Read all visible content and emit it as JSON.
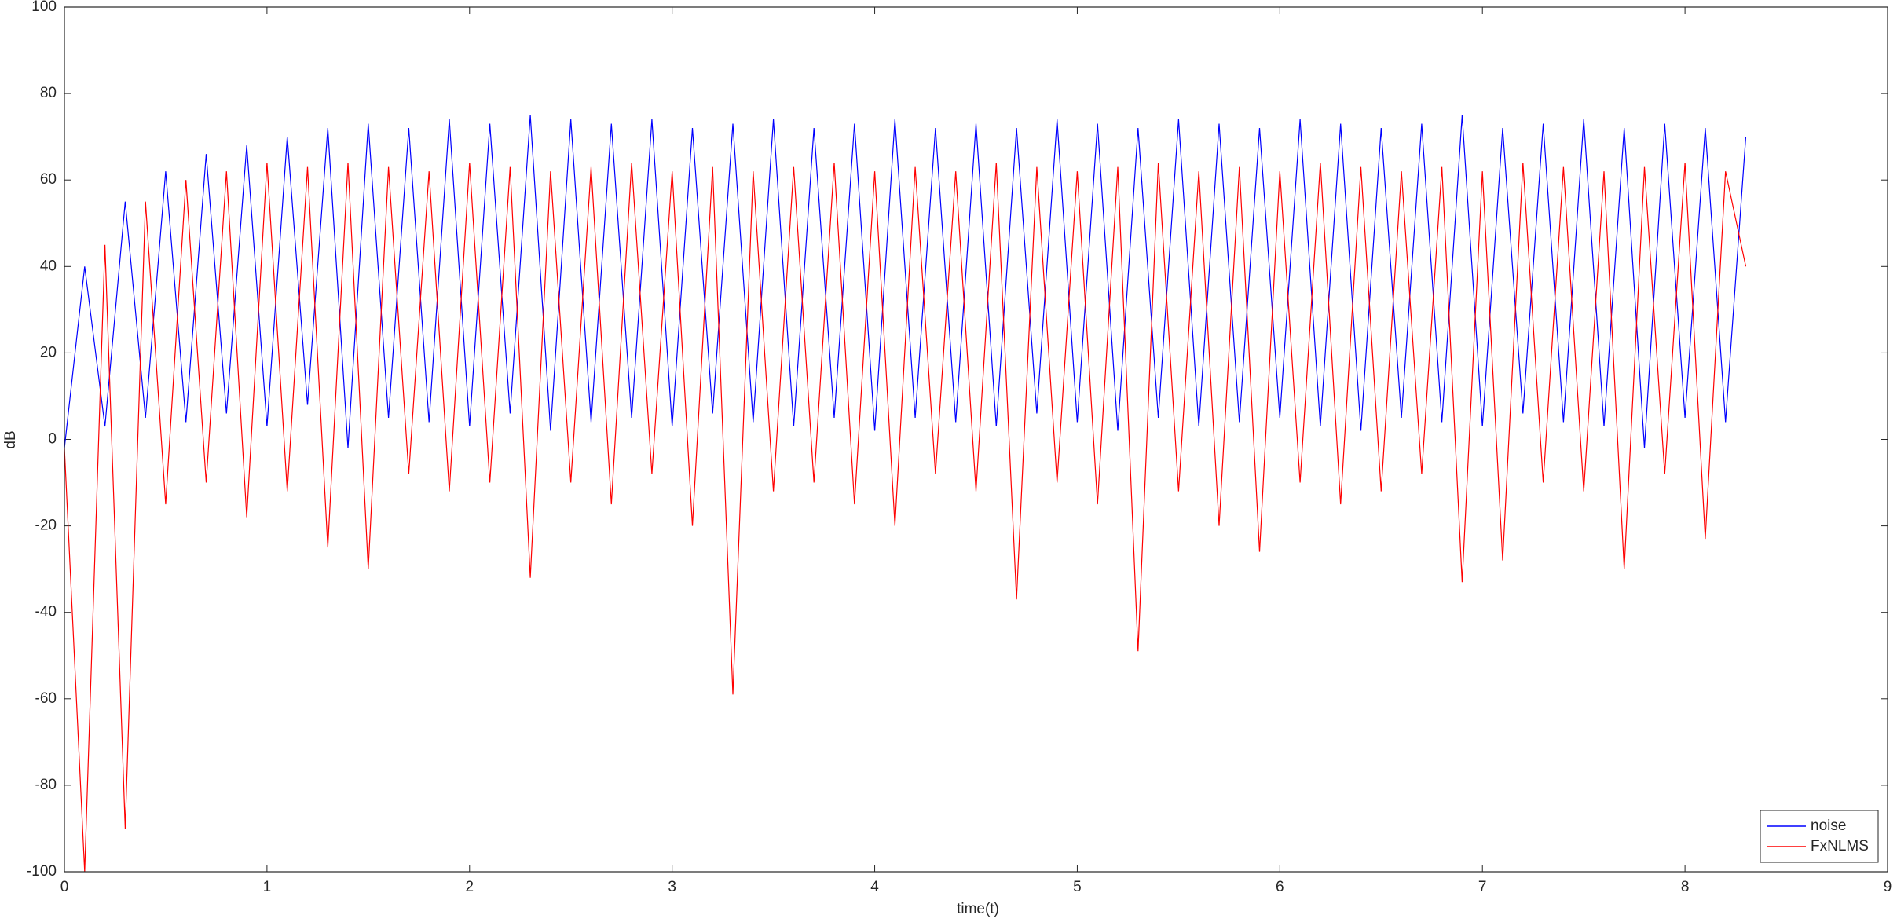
{
  "chart_data": {
    "type": "line",
    "xlabel": "time(t)",
    "ylabel": "dB",
    "xlim": [
      0,
      9
    ],
    "ylim": [
      -100,
      100
    ],
    "xticks": [
      0,
      1,
      2,
      3,
      4,
      5,
      6,
      7,
      8,
      9
    ],
    "yticks": [
      -100,
      -80,
      -60,
      -40,
      -20,
      0,
      20,
      40,
      60,
      80,
      100
    ],
    "grid": false,
    "legend": "southeast",
    "x": [
      0,
      0.1,
      0.2,
      0.3,
      0.4,
      0.5,
      0.6,
      0.7,
      0.8,
      0.9,
      1,
      1.1,
      1.2,
      1.3,
      1.4,
      1.5,
      1.6,
      1.7,
      1.8,
      1.9,
      2,
      2.1,
      2.2,
      2.3,
      2.4,
      2.5,
      2.6,
      2.7,
      2.8,
      2.9,
      3,
      3.1,
      3.2,
      3.3,
      3.4,
      3.5,
      3.6,
      3.7,
      3.8,
      3.9,
      4,
      4.1,
      4.2,
      4.3,
      4.4,
      4.5,
      4.6,
      4.7,
      4.8,
      4.9,
      5,
      5.1,
      5.2,
      5.3,
      5.4,
      5.5,
      5.6,
      5.7,
      5.8,
      5.9,
      6,
      6.1,
      6.2,
      6.3,
      6.4,
      6.5,
      6.6,
      6.7,
      6.8,
      6.9,
      7,
      7.1,
      7.2,
      7.3,
      7.4,
      7.5,
      7.6,
      7.7,
      7.8,
      7.9,
      8,
      8.1,
      8.2,
      8.3
    ],
    "series": [
      {
        "name": "noise",
        "color": "#0000ff",
        "values": [
          -2,
          40,
          3,
          55,
          5,
          62,
          4,
          66,
          6,
          68,
          3,
          70,
          8,
          72,
          -2,
          73,
          5,
          72,
          4,
          74,
          3,
          73,
          6,
          75,
          2,
          74,
          4,
          73,
          5,
          74,
          3,
          72,
          6,
          73,
          4,
          74,
          3,
          72,
          5,
          73,
          2,
          74,
          5,
          72,
          4,
          73,
          3,
          72,
          6,
          74,
          4,
          73,
          2,
          72,
          5,
          74,
          3,
          73,
          4,
          72,
          5,
          74,
          3,
          73,
          2,
          72,
          5,
          73,
          4,
          75,
          3,
          72,
          6,
          73,
          4,
          74,
          3,
          72,
          -2,
          73,
          5,
          72,
          4,
          70
        ]
      },
      {
        "name": "FxNLMS",
        "color": "#ff0000",
        "values": [
          -2,
          -100,
          45,
          -90,
          55,
          -15,
          60,
          -10,
          62,
          -18,
          64,
          -12,
          63,
          -25,
          64,
          -30,
          63,
          -8,
          62,
          -12,
          64,
          -10,
          63,
          -32,
          62,
          -10,
          63,
          -15,
          64,
          -8,
          62,
          -20,
          63,
          -59,
          62,
          -12,
          63,
          -10,
          64,
          -15,
          62,
          -20,
          63,
          -8,
          62,
          -12,
          64,
          -37,
          63,
          -10,
          62,
          -15,
          63,
          -49,
          64,
          -12,
          62,
          -20,
          63,
          -26,
          62,
          -10,
          64,
          -15,
          63,
          -12,
          62,
          -8,
          63,
          -33,
          62,
          -28,
          64,
          -10,
          63,
          -12,
          62,
          -30,
          63,
          -8,
          64,
          -23,
          62,
          40
        ]
      }
    ]
  }
}
